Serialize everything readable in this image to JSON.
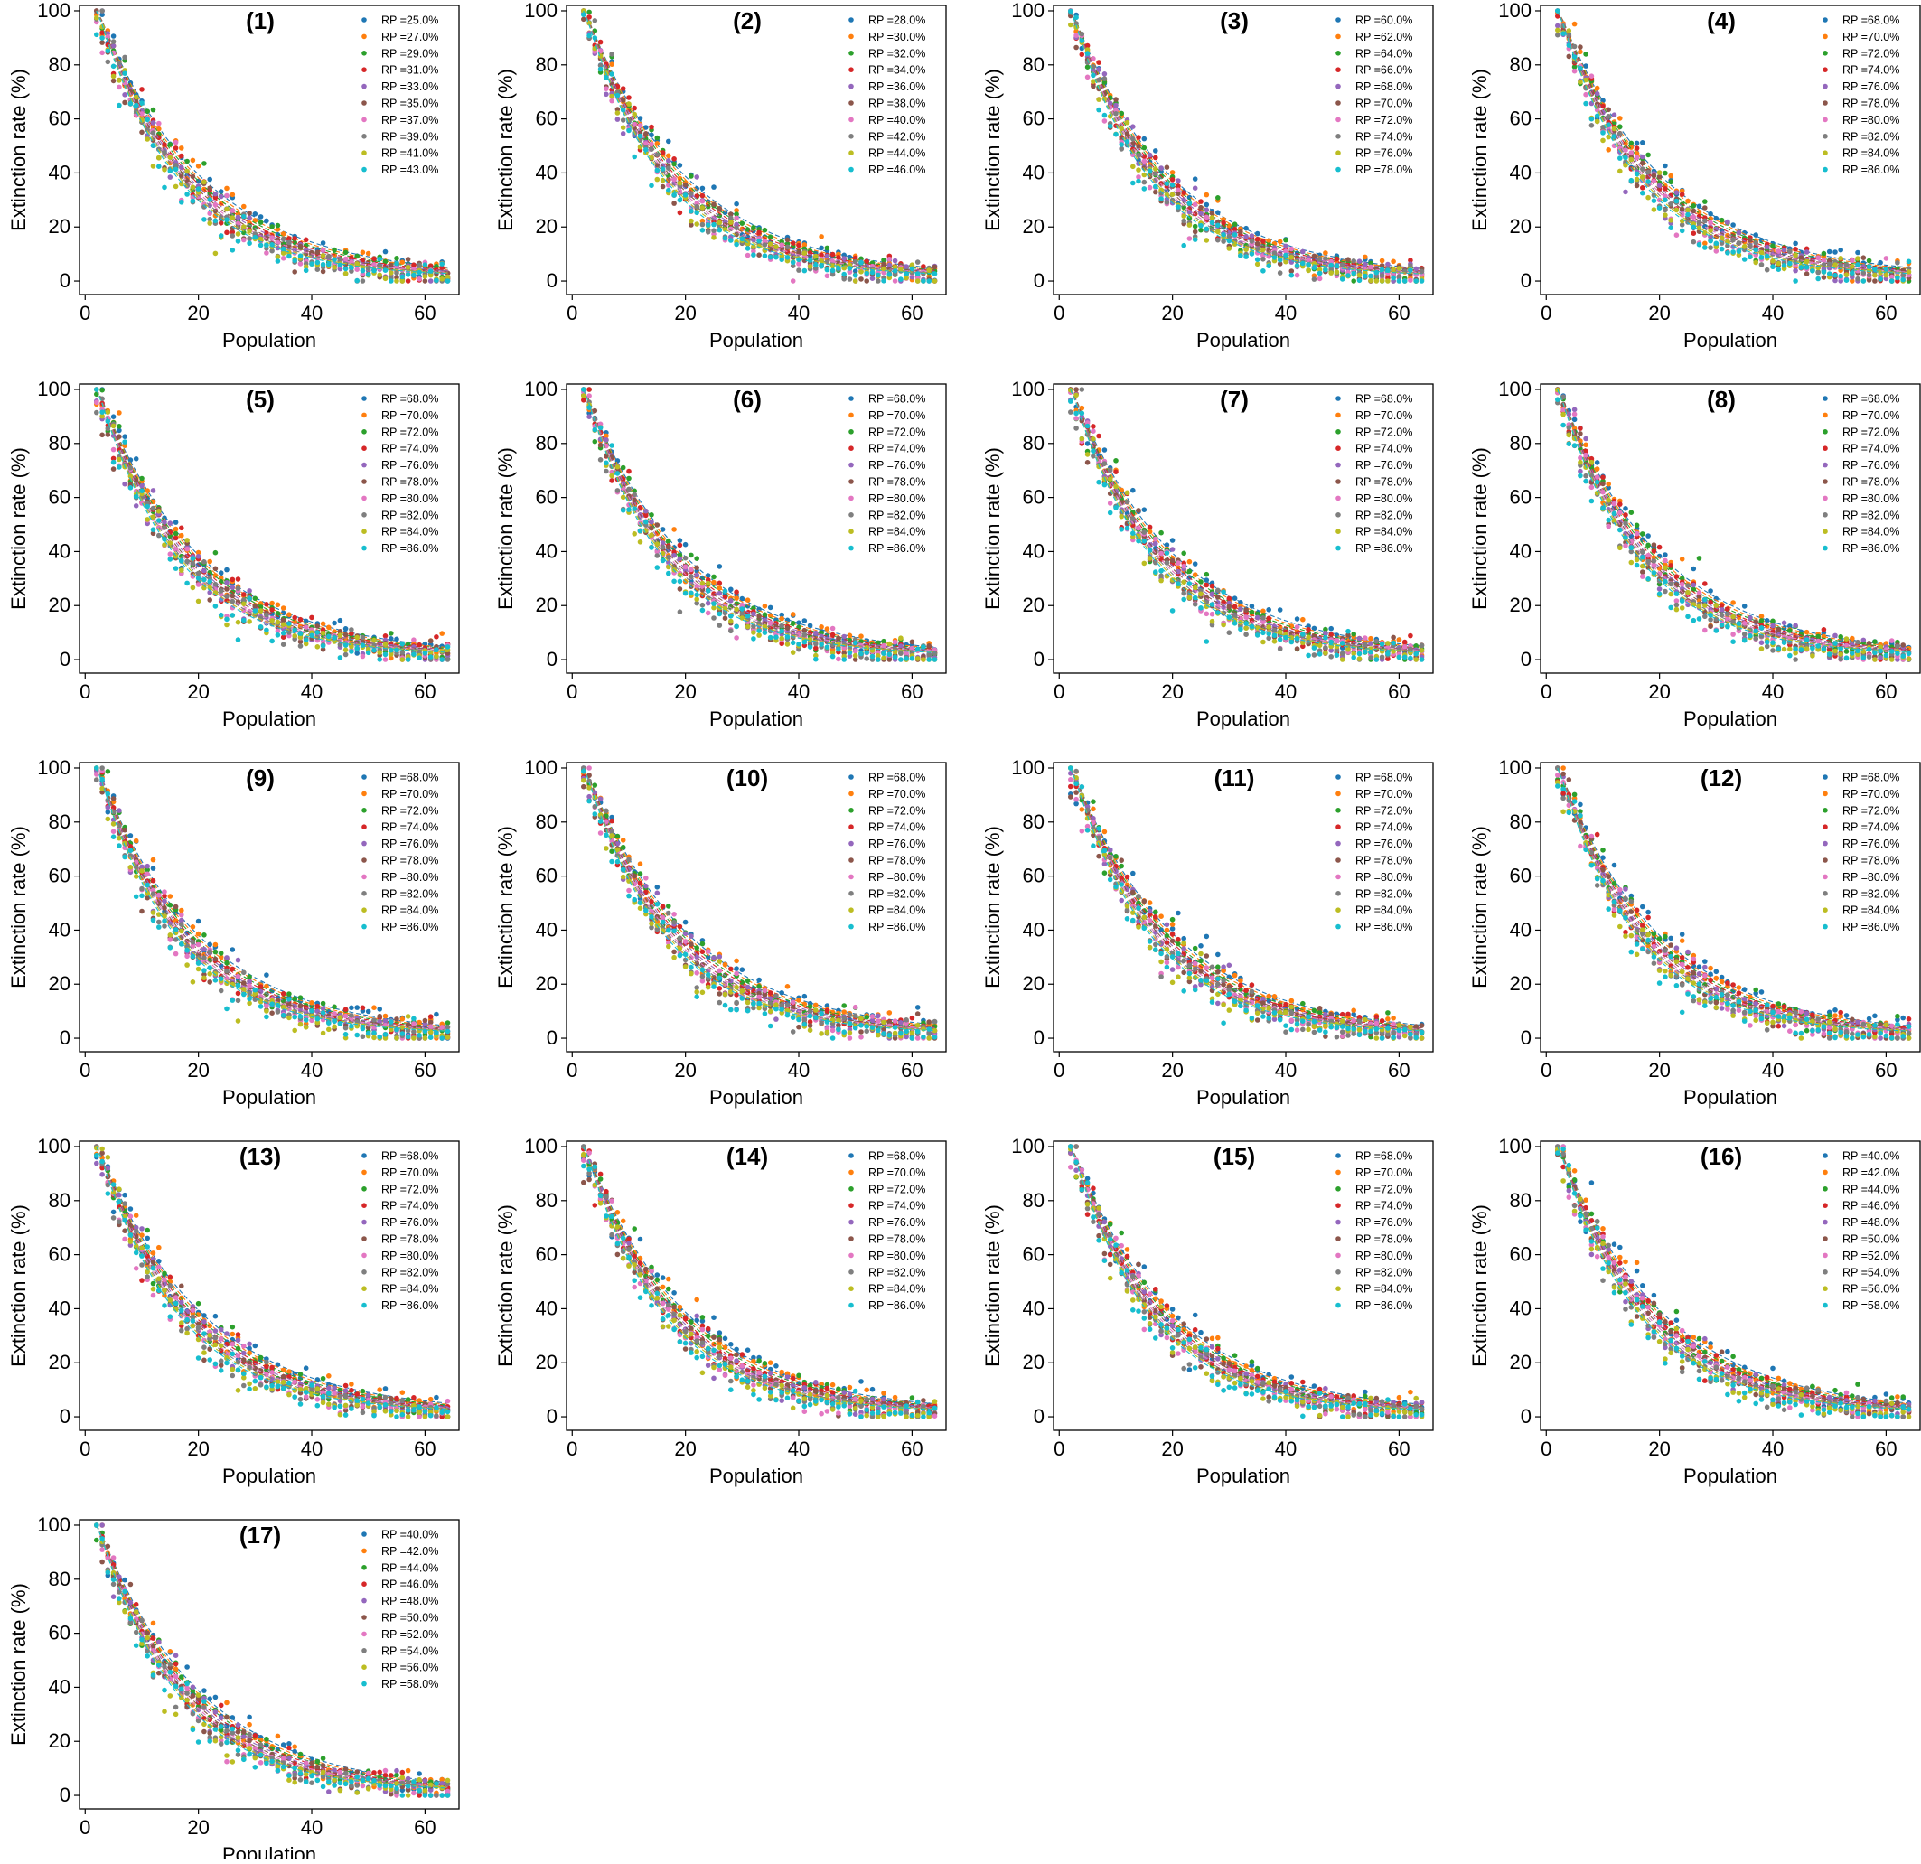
{
  "figure": {
    "xlabel": "Population",
    "ylabel": "Extinction rate (%)",
    "xticks": [
      0,
      20,
      40,
      60
    ],
    "yticks": [
      0,
      20,
      40,
      60,
      80,
      100
    ],
    "xlim": [
      -1,
      66
    ],
    "ylim": [
      -5,
      102
    ]
  },
  "series_colors": [
    "#1f77b4",
    "#ff7f0e",
    "#2ca02c",
    "#d62728",
    "#9467bd",
    "#8c564b",
    "#e377c2",
    "#7f7f7f",
    "#bcbd22",
    "#17becf"
  ],
  "chart_data": [
    {
      "type": "scatter",
      "panel": "(1)",
      "xlabel": "Population",
      "ylabel": "Extinction rate (%)",
      "xlim": [
        -1,
        66
      ],
      "ylim": [
        -5,
        102
      ],
      "legend_placement": "top-right",
      "x_range": [
        2,
        64
      ],
      "legend": [
        "RP =25.0%",
        "RP =27.0%",
        "RP =29.0%",
        "RP =31.0%",
        "RP =33.0%",
        "RP =35.0%",
        "RP =37.0%",
        "RP =39.0%",
        "RP =41.0%",
        "RP =43.0%"
      ]
    },
    {
      "type": "scatter",
      "panel": "(2)",
      "xlabel": "Population",
      "ylabel": "Extinction rate (%)",
      "xlim": [
        -1,
        66
      ],
      "ylim": [
        -5,
        102
      ],
      "legend_placement": "top-right",
      "x_range": [
        2,
        64
      ],
      "legend": [
        "RP =28.0%",
        "RP =30.0%",
        "RP =32.0%",
        "RP =34.0%",
        "RP =36.0%",
        "RP =38.0%",
        "RP =40.0%",
        "RP =42.0%",
        "RP =44.0%",
        "RP =46.0%"
      ]
    },
    {
      "type": "scatter",
      "panel": "(3)",
      "xlabel": "Population",
      "ylabel": "Extinction rate (%)",
      "xlim": [
        -1,
        66
      ],
      "ylim": [
        -5,
        102
      ],
      "legend_placement": "top-right",
      "x_range": [
        2,
        64
      ],
      "legend": [
        "RP =60.0%",
        "RP =62.0%",
        "RP =64.0%",
        "RP =66.0%",
        "RP =68.0%",
        "RP =70.0%",
        "RP =72.0%",
        "RP =74.0%",
        "RP =76.0%",
        "RP =78.0%"
      ]
    },
    {
      "type": "scatter",
      "panel": "(4)",
      "xlabel": "Population",
      "ylabel": "Extinction rate (%)",
      "xlim": [
        -1,
        66
      ],
      "ylim": [
        -5,
        102
      ],
      "legend_placement": "top-right",
      "x_range": [
        2,
        64
      ],
      "legend": [
        "RP =68.0%",
        "RP =70.0%",
        "RP =72.0%",
        "RP =74.0%",
        "RP =76.0%",
        "RP =78.0%",
        "RP =80.0%",
        "RP =82.0%",
        "RP =84.0%",
        "RP =86.0%"
      ]
    },
    {
      "type": "scatter",
      "panel": "(5)",
      "xlabel": "Population",
      "ylabel": "Extinction rate (%)",
      "xlim": [
        -1,
        66
      ],
      "ylim": [
        -5,
        102
      ],
      "legend_placement": "top-right",
      "x_range": [
        2,
        64
      ],
      "legend": [
        "RP =68.0%",
        "RP =70.0%",
        "RP =72.0%",
        "RP =74.0%",
        "RP =76.0%",
        "RP =78.0%",
        "RP =80.0%",
        "RP =82.0%",
        "RP =84.0%",
        "RP =86.0%"
      ]
    },
    {
      "type": "scatter",
      "panel": "(6)",
      "xlabel": "Population",
      "ylabel": "Extinction rate (%)",
      "xlim": [
        -1,
        66
      ],
      "ylim": [
        -5,
        102
      ],
      "legend_placement": "top-right",
      "x_range": [
        2,
        64
      ],
      "legend": [
        "RP =68.0%",
        "RP =70.0%",
        "RP =72.0%",
        "RP =74.0%",
        "RP =76.0%",
        "RP =78.0%",
        "RP =80.0%",
        "RP =82.0%",
        "RP =84.0%",
        "RP =86.0%"
      ]
    },
    {
      "type": "scatter",
      "panel": "(7)",
      "xlabel": "Population",
      "ylabel": "Extinction rate (%)",
      "xlim": [
        -1,
        66
      ],
      "ylim": [
        -5,
        102
      ],
      "legend_placement": "top-right",
      "x_range": [
        2,
        64
      ],
      "legend": [
        "RP =68.0%",
        "RP =70.0%",
        "RP =72.0%",
        "RP =74.0%",
        "RP =76.0%",
        "RP =78.0%",
        "RP =80.0%",
        "RP =82.0%",
        "RP =84.0%",
        "RP =86.0%"
      ]
    },
    {
      "type": "scatter",
      "panel": "(8)",
      "xlabel": "Population",
      "ylabel": "Extinction rate (%)",
      "xlim": [
        -1,
        66
      ],
      "ylim": [
        -5,
        102
      ],
      "legend_placement": "top-right",
      "x_range": [
        2,
        64
      ],
      "legend": [
        "RP =68.0%",
        "RP =70.0%",
        "RP =72.0%",
        "RP =74.0%",
        "RP =76.0%",
        "RP =78.0%",
        "RP =80.0%",
        "RP =82.0%",
        "RP =84.0%",
        "RP =86.0%"
      ]
    },
    {
      "type": "scatter",
      "panel": "(9)",
      "xlabel": "Population",
      "ylabel": "Extinction rate (%)",
      "xlim": [
        -1,
        66
      ],
      "ylim": [
        -5,
        102
      ],
      "legend_placement": "top-right",
      "x_range": [
        2,
        64
      ],
      "legend": [
        "RP =68.0%",
        "RP =70.0%",
        "RP =72.0%",
        "RP =74.0%",
        "RP =76.0%",
        "RP =78.0%",
        "RP =80.0%",
        "RP =82.0%",
        "RP =84.0%",
        "RP =86.0%"
      ]
    },
    {
      "type": "scatter",
      "panel": "(10)",
      "xlabel": "Population",
      "ylabel": "Extinction rate (%)",
      "xlim": [
        -1,
        66
      ],
      "ylim": [
        -5,
        102
      ],
      "legend_placement": "top-right",
      "x_range": [
        2,
        64
      ],
      "legend": [
        "RP =68.0%",
        "RP =70.0%",
        "RP =72.0%",
        "RP =74.0%",
        "RP =76.0%",
        "RP =78.0%",
        "RP =80.0%",
        "RP =82.0%",
        "RP =84.0%",
        "RP =86.0%"
      ]
    },
    {
      "type": "scatter",
      "panel": "(11)",
      "xlabel": "Population",
      "ylabel": "Extinction rate (%)",
      "xlim": [
        -1,
        66
      ],
      "ylim": [
        -5,
        102
      ],
      "legend_placement": "top-right",
      "x_range": [
        2,
        64
      ],
      "legend": [
        "RP =68.0%",
        "RP =70.0%",
        "RP =72.0%",
        "RP =74.0%",
        "RP =76.0%",
        "RP =78.0%",
        "RP =80.0%",
        "RP =82.0%",
        "RP =84.0%",
        "RP =86.0%"
      ]
    },
    {
      "type": "scatter",
      "panel": "(12)",
      "xlabel": "Population",
      "ylabel": "Extinction rate (%)",
      "xlim": [
        -1,
        66
      ],
      "ylim": [
        -5,
        102
      ],
      "legend_placement": "top-right",
      "x_range": [
        2,
        64
      ],
      "legend": [
        "RP =68.0%",
        "RP =70.0%",
        "RP =72.0%",
        "RP =74.0%",
        "RP =76.0%",
        "RP =78.0%",
        "RP =80.0%",
        "RP =82.0%",
        "RP =84.0%",
        "RP =86.0%"
      ]
    },
    {
      "type": "scatter",
      "panel": "(13)",
      "xlabel": "Population",
      "ylabel": "Extinction rate (%)",
      "xlim": [
        -1,
        66
      ],
      "ylim": [
        -5,
        102
      ],
      "legend_placement": "top-right",
      "x_range": [
        2,
        64
      ],
      "legend": [
        "RP =68.0%",
        "RP =70.0%",
        "RP =72.0%",
        "RP =74.0%",
        "RP =76.0%",
        "RP =78.0%",
        "RP =80.0%",
        "RP =82.0%",
        "RP =84.0%",
        "RP =86.0%"
      ]
    },
    {
      "type": "scatter",
      "panel": "(14)",
      "xlabel": "Population",
      "ylabel": "Extinction rate (%)",
      "xlim": [
        -1,
        66
      ],
      "ylim": [
        -5,
        102
      ],
      "legend_placement": "top-right",
      "x_range": [
        2,
        64
      ],
      "legend": [
        "RP =68.0%",
        "RP =70.0%",
        "RP =72.0%",
        "RP =74.0%",
        "RP =76.0%",
        "RP =78.0%",
        "RP =80.0%",
        "RP =82.0%",
        "RP =84.0%",
        "RP =86.0%"
      ]
    },
    {
      "type": "scatter",
      "panel": "(15)",
      "xlabel": "Population",
      "ylabel": "Extinction rate (%)",
      "xlim": [
        -1,
        66
      ],
      "ylim": [
        -5,
        102
      ],
      "legend_placement": "top-right",
      "x_range": [
        2,
        64
      ],
      "legend": [
        "RP =68.0%",
        "RP =70.0%",
        "RP =72.0%",
        "RP =74.0%",
        "RP =76.0%",
        "RP =78.0%",
        "RP =80.0%",
        "RP =82.0%",
        "RP =84.0%",
        "RP =86.0%"
      ]
    },
    {
      "type": "scatter",
      "panel": "(16)",
      "xlabel": "Population",
      "ylabel": "Extinction rate (%)",
      "xlim": [
        -1,
        66
      ],
      "ylim": [
        -5,
        102
      ],
      "legend_placement": "top-right",
      "x_range": [
        2,
        64
      ],
      "legend": [
        "RP =40.0%",
        "RP =42.0%",
        "RP =44.0%",
        "RP =46.0%",
        "RP =48.0%",
        "RP =50.0%",
        "RP =52.0%",
        "RP =54.0%",
        "RP =56.0%",
        "RP =58.0%"
      ]
    },
    {
      "type": "scatter",
      "panel": "(17)",
      "xlabel": "Population",
      "ylabel": "Extinction rate (%)",
      "xlim": [
        -1,
        66
      ],
      "ylim": [
        -5,
        102
      ],
      "legend_placement": "top-right",
      "x_range": [
        2,
        64
      ],
      "legend": [
        "RP =40.0%",
        "RP =42.0%",
        "RP =44.0%",
        "RP =46.0%",
        "RP =48.0%",
        "RP =50.0%",
        "RP =52.0%",
        "RP =54.0%",
        "RP =56.0%",
        "RP =58.0%"
      ]
    }
  ]
}
